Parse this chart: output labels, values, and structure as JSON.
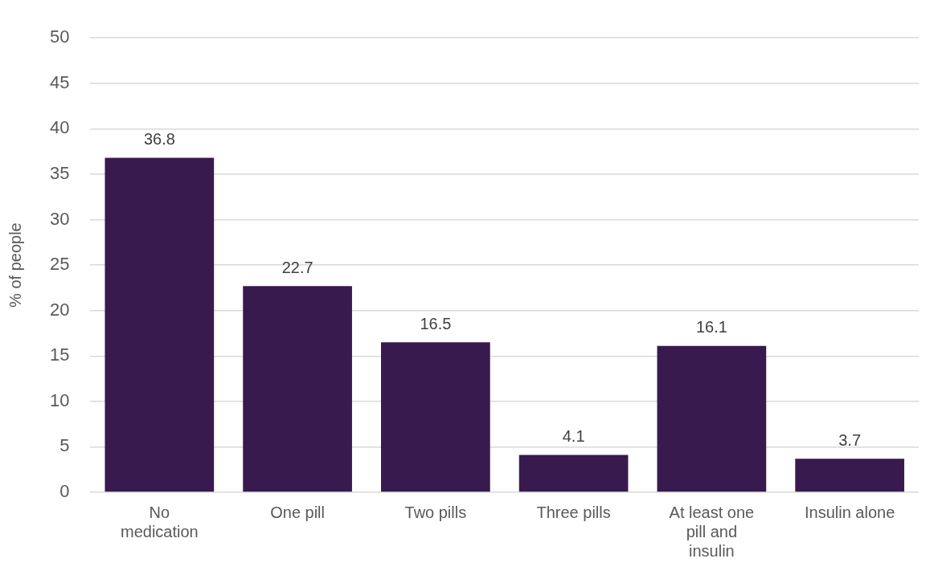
{
  "chart_data": {
    "type": "bar",
    "ylabel": "% of people",
    "categories": [
      "No medication",
      "One pill",
      "Two pills",
      "Three pills",
      "At least one pill and insulin",
      "Insulin alone"
    ],
    "values": [
      36.8,
      22.7,
      16.5,
      4.1,
      16.1,
      3.7
    ],
    "color": "#381a4f",
    "ylim": [
      0,
      50
    ],
    "yticks": [
      0,
      5,
      10,
      15,
      20,
      25,
      30,
      35,
      40,
      45,
      50
    ],
    "grid": "y",
    "data_labels": true
  }
}
